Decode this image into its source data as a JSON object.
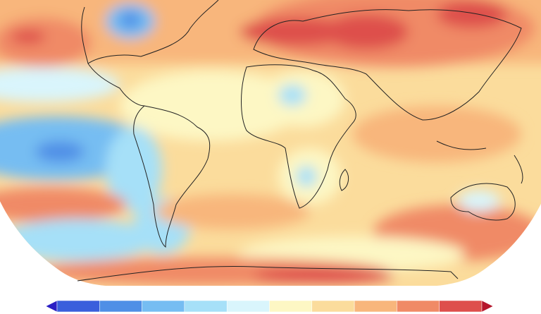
{
  "colorbar": {
    "colors": [
      "#2b1fc4",
      "#3a5fdc",
      "#4f8fe6",
      "#76bdf2",
      "#a6e0f8",
      "#d9f5fc",
      "#fdf7c4",
      "#fbdc9c",
      "#f8b67c",
      "#f08a66",
      "#de4f4c",
      "#b5162c"
    ]
  }
}
